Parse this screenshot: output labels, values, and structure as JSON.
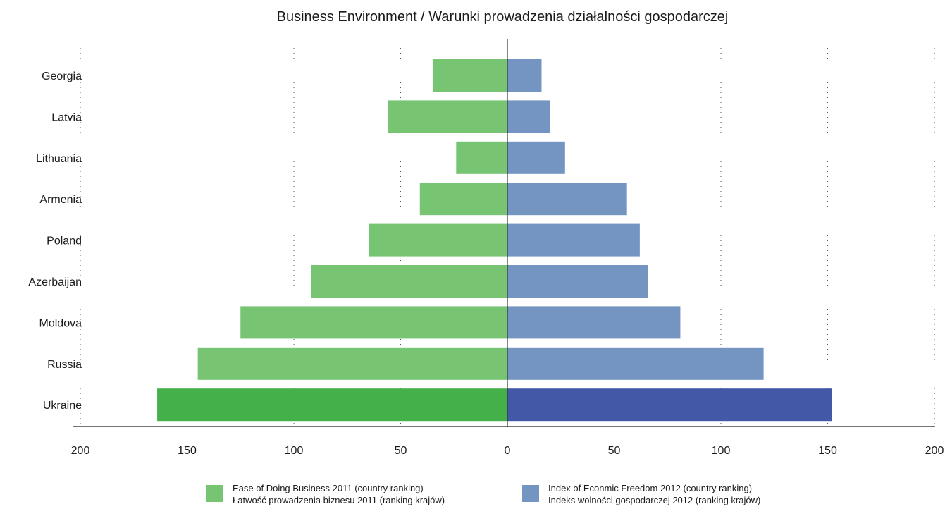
{
  "chart_data": {
    "type": "bar",
    "orientation": "horizontal-butterfly",
    "title": "Business Environment / Warunki prowadzenia działalności gospodarczej",
    "categories": [
      "Georgia",
      "Latvia",
      "Lithuania",
      "Armenia",
      "Poland",
      "Azerbaijan",
      "Moldova",
      "Russia",
      "Ukraine"
    ],
    "series": [
      {
        "name": "Ease of Doing Business 2011 (country ranking)",
        "name_pl": "Łatwość prowadzenia biznesu 2011 (ranking krajów)",
        "side": "left",
        "color": "#77c473",
        "highlight_color": "#43b04a",
        "values": [
          35,
          56,
          24,
          41,
          65,
          92,
          125,
          145,
          164
        ]
      },
      {
        "name": "Index of Econmic Freedom 2012 (country ranking)",
        "name_pl": "Indeks wolności gospodarczej 2012 (ranking krajów)",
        "side": "right",
        "color": "#7494c2",
        "highlight_color": "#4358a6",
        "values": [
          16,
          20,
          27,
          56,
          62,
          66,
          81,
          120,
          152
        ]
      }
    ],
    "highlight_category": "Ukraine",
    "x_ticks": [
      {
        "value": -200,
        "label": "200"
      },
      {
        "value": -150,
        "label": "150"
      },
      {
        "value": -100,
        "label": "100"
      },
      {
        "value": -50,
        "label": "50"
      },
      {
        "value": 0,
        "label": "0"
      },
      {
        "value": 50,
        "label": "50"
      },
      {
        "value": 100,
        "label": "100"
      },
      {
        "value": 150,
        "label": "150"
      },
      {
        "value": 200,
        "label": "200"
      }
    ],
    "xlim": [
      -200,
      200
    ],
    "grid": "dotted-vertical",
    "legend_position": "bottom"
  }
}
